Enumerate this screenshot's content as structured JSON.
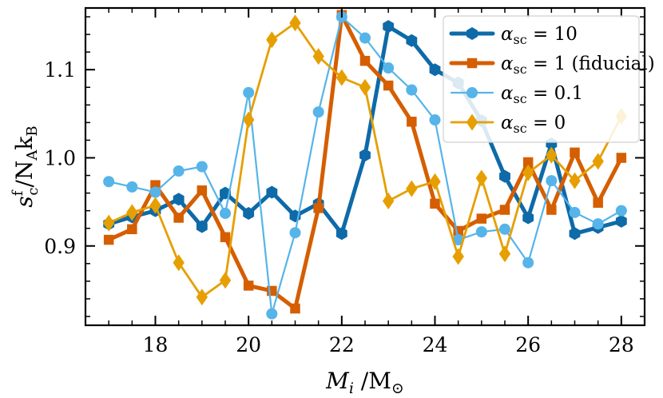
{
  "chart_data": {
    "type": "line",
    "title": "",
    "xlabel": "M_i / M_⊙",
    "ylabel": "s_c^f / N_A k_B",
    "xlim": [
      16.5,
      28.5
    ],
    "ylim": [
      0.81,
      1.17
    ],
    "x_ticks": [
      18,
      20,
      22,
      24,
      26,
      28
    ],
    "x_tick_labels": [
      "18",
      "20",
      "22",
      "24",
      "26",
      "28"
    ],
    "y_ticks": [
      0.9,
      1.0,
      1.1
    ],
    "y_tick_labels": [
      "0.9",
      "1.0",
      "1.1"
    ],
    "x": [
      17.0,
      17.5,
      18.0,
      18.5,
      19.0,
      19.5,
      20.0,
      20.5,
      21.0,
      21.5,
      22.0,
      22.5,
      23.0,
      23.5,
      24.0,
      24.5,
      25.0,
      25.5,
      26.0,
      26.5,
      27.0,
      27.5,
      28.0
    ],
    "legend_position": "top-right",
    "series": [
      {
        "name": "αsc = 10",
        "legend_symbol": "α",
        "legend_sub": "sc",
        "legend_rest": " = 10",
        "color": "#0e6aa8",
        "marker": "hexagon",
        "values": [
          0.925,
          0.933,
          0.94,
          0.953,
          0.922,
          0.96,
          0.937,
          0.961,
          0.934,
          0.948,
          0.914,
          1.003,
          1.149,
          1.133,
          1.1,
          1.085,
          1.042,
          0.979,
          0.932,
          1.016,
          0.914,
          0.921,
          0.928
        ]
      },
      {
        "name": "αsc = 1 (fiducial)",
        "legend_symbol": "α",
        "legend_sub": "sc",
        "legend_rest": " = 1 (fiducial)",
        "color": "#d55e00",
        "marker": "square",
        "values": [
          0.907,
          0.919,
          0.969,
          0.932,
          0.963,
          0.91,
          0.855,
          0.849,
          0.829,
          0.943,
          1.162,
          1.11,
          1.082,
          1.041,
          0.948,
          0.917,
          0.931,
          0.941,
          0.995,
          0.941,
          1.006,
          0.949,
          1.0
        ]
      },
      {
        "name": "αsc = 0.1",
        "legend_symbol": "α",
        "legend_sub": "sc",
        "legend_rest": " = 0.1",
        "color": "#56b4e9",
        "marker": "circle",
        "values": [
          0.973,
          0.967,
          0.961,
          0.985,
          0.99,
          0.937,
          1.074,
          0.823,
          0.915,
          1.052,
          1.16,
          1.136,
          1.102,
          1.077,
          1.043,
          0.907,
          0.916,
          0.919,
          0.881,
          0.974,
          0.938,
          0.925,
          0.94
        ]
      },
      {
        "name": "αsc = 0",
        "legend_symbol": "α",
        "legend_sub": "sc",
        "legend_rest": " = 0",
        "color": "#e69f00",
        "marker": "diamond",
        "values": [
          0.926,
          0.938,
          0.946,
          0.881,
          0.842,
          0.861,
          1.043,
          1.134,
          1.153,
          1.115,
          1.091,
          1.08,
          0.951,
          0.965,
          0.973,
          0.888,
          0.977,
          0.891,
          0.983,
          1.003,
          0.974,
          0.996,
          1.047
        ]
      }
    ]
  }
}
